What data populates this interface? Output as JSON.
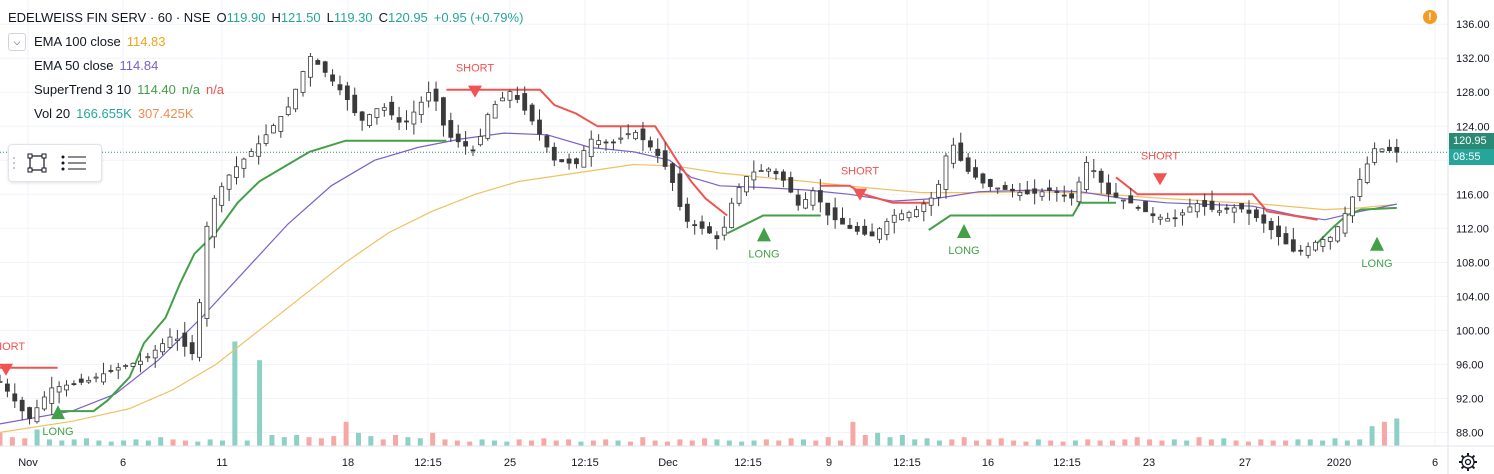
{
  "header": {
    "symbol": "EDELWEISS FIN SERV · 60 · NSE",
    "open_label": "O",
    "open": "119.90",
    "high_label": "H",
    "high": "121.50",
    "low_label": "L",
    "low": "119.30",
    "close_label": "C",
    "close": "120.95",
    "change": "+0.95 (+0.79%)"
  },
  "indicators": [
    {
      "name": "EMA 100 close",
      "values": [
        "114.83"
      ],
      "color": "#f0a519"
    },
    {
      "name": "EMA 50 close",
      "values": [
        "114.84"
      ],
      "color": "#7c5fc9"
    },
    {
      "name": "SuperTrend 3 10",
      "values": [
        "114.40",
        "n/a",
        "n/a"
      ],
      "color": "#e53935"
    },
    {
      "name": "Vol 20",
      "values": [
        "166.655K",
        "307.425K"
      ],
      "color": "#26a69a"
    }
  ],
  "warning_icon": "!",
  "current_price": "120.95",
  "countdown": "08:55",
  "colors": {
    "up": "#26a69a",
    "down": "#ef5350",
    "candle": "#3a3a3a",
    "supertrend_up": "#43a047",
    "supertrend_down": "#f05350",
    "ema100": "#f0c060",
    "ema50": "#7c5fc9",
    "price_tag": "#2b8a76",
    "countdown_tag": "#26a69a"
  },
  "chart_data": {
    "type": "candlestick",
    "y_axis_ticks": [
      136,
      132,
      128,
      124,
      120,
      116,
      112,
      108,
      104,
      100,
      96,
      92,
      88
    ],
    "ylim": [
      86.4,
      137.2
    ],
    "x_tick_labels": [
      "Nov",
      "6",
      "11",
      "18",
      "12:15",
      "25",
      "12:15",
      "Dec",
      "12:15",
      "9",
      "12:15",
      "16",
      "12:15",
      "23",
      "27",
      "2020",
      "6"
    ],
    "signals": [
      {
        "label": "SHORT",
        "at": "start",
        "price": 95.6
      },
      {
        "label": "LONG",
        "at": "Nov",
        "price": 90.5
      },
      {
        "label": "SHORT",
        "at": "12:15",
        "price": 128.3
      },
      {
        "label": "LONG",
        "at": "12:15",
        "price": 111.4
      },
      {
        "label": "SHORT",
        "at": "9",
        "price": 116.2
      },
      {
        "label": "LONG",
        "at": "16",
        "price": 111.8
      },
      {
        "label": "SHORT",
        "at": "23",
        "price": 118.0
      },
      {
        "label": "LONG",
        "at": "2020",
        "price": 110.3
      }
    ],
    "close_path": [
      [
        0,
        94.0
      ],
      [
        0.02,
        89.5
      ],
      [
        0.035,
        93.2
      ],
      [
        0.06,
        94.0
      ],
      [
        0.08,
        95.5
      ],
      [
        0.1,
        96.5
      ],
      [
        0.12,
        99.5
      ],
      [
        0.135,
        97.0
      ],
      [
        0.145,
        114.5
      ],
      [
        0.16,
        118.5
      ],
      [
        0.18,
        122.0
      ],
      [
        0.2,
        126.2
      ],
      [
        0.215,
        132.3
      ],
      [
        0.225,
        130.5
      ],
      [
        0.24,
        127.5
      ],
      [
        0.25,
        124.5
      ],
      [
        0.265,
        126.5
      ],
      [
        0.28,
        124.0
      ],
      [
        0.3,
        128.5
      ],
      [
        0.31,
        123.0
      ],
      [
        0.33,
        121.0
      ],
      [
        0.34,
        126.0
      ],
      [
        0.355,
        128.2
      ],
      [
        0.37,
        124.5
      ],
      [
        0.385,
        120.0
      ],
      [
        0.4,
        119.5
      ],
      [
        0.41,
        122.5
      ],
      [
        0.425,
        122.0
      ],
      [
        0.44,
        123.5
      ],
      [
        0.455,
        121.0
      ],
      [
        0.465,
        118.5
      ],
      [
        0.475,
        113.0
      ],
      [
        0.49,
        111.8
      ],
      [
        0.5,
        110.5
      ],
      [
        0.51,
        116.0
      ],
      [
        0.52,
        118.5
      ],
      [
        0.535,
        119.0
      ],
      [
        0.545,
        117.5
      ],
      [
        0.555,
        114.5
      ],
      [
        0.565,
        116.5
      ],
      [
        0.575,
        113.5
      ],
      [
        0.59,
        112.0
      ],
      [
        0.605,
        111.0
      ],
      [
        0.62,
        113.5
      ],
      [
        0.635,
        114.0
      ],
      [
        0.65,
        116.0
      ],
      [
        0.66,
        122.5
      ],
      [
        0.67,
        119.0
      ],
      [
        0.685,
        117.0
      ],
      [
        0.7,
        116.5
      ],
      [
        0.715,
        116.0
      ],
      [
        0.73,
        116.5
      ],
      [
        0.745,
        115.5
      ],
      [
        0.755,
        120.0
      ],
      [
        0.77,
        116.0
      ],
      [
        0.785,
        115.0
      ],
      [
        0.8,
        113.5
      ],
      [
        0.815,
        113.0
      ],
      [
        0.83,
        115.0
      ],
      [
        0.845,
        114.0
      ],
      [
        0.86,
        114.5
      ],
      [
        0.875,
        113.0
      ],
      [
        0.885,
        111.5
      ],
      [
        0.9,
        109.0
      ],
      [
        0.915,
        110.5
      ],
      [
        0.925,
        111.0
      ],
      [
        0.935,
        114.0
      ],
      [
        0.945,
        118.0
      ],
      [
        0.955,
        121.5
      ],
      [
        0.97,
        120.95
      ]
    ],
    "volume_level": [
      0.12,
      0.08,
      0.07,
      0.15,
      0.06,
      0.05,
      0.06,
      0.07,
      0.05,
      0.04,
      0.05,
      0.06,
      0.05,
      0.08,
      0.06,
      0.05,
      0.04,
      0.06,
      0.05,
      0.95,
      0.05,
      0.78,
      0.1,
      0.08,
      0.1,
      0.08,
      0.07,
      0.09,
      0.22,
      0.12,
      0.09,
      0.06,
      0.1,
      0.08,
      0.07,
      0.12,
      0.06,
      0.05,
      0.04,
      0.06,
      0.05,
      0.04,
      0.06,
      0.05,
      0.07,
      0.05,
      0.06,
      0.04,
      0.05,
      0.06,
      0.05,
      0.04,
      0.08,
      0.05,
      0.04,
      0.06,
      0.05,
      0.07,
      0.06,
      0.05,
      0.04,
      0.05,
      0.06,
      0.05,
      0.07,
      0.06,
      0.05,
      0.08,
      0.05,
      0.22,
      0.1,
      0.12,
      0.08,
      0.1,
      0.06,
      0.07,
      0.05,
      0.06,
      0.08,
      0.05,
      0.06,
      0.07,
      0.05,
      0.04,
      0.06,
      0.05,
      0.04,
      0.05,
      0.06,
      0.05,
      0.05,
      0.06,
      0.08,
      0.06,
      0.05,
      0.06,
      0.05,
      0.08,
      0.06,
      0.07,
      0.05,
      0.04,
      0.06,
      0.05,
      0.05,
      0.06,
      0.06,
      0.05,
      0.07,
      0.05,
      0.06,
      0.18,
      0.22,
      0.25
    ],
    "supertrend": [
      {
        "trend": "down",
        "points": [
          [
            0,
            95.6
          ],
          [
            0.04,
            95.6
          ]
        ]
      },
      {
        "trend": "up",
        "points": [
          [
            0.04,
            90.5
          ],
          [
            0.065,
            90.5
          ],
          [
            0.075,
            91.8
          ],
          [
            0.09,
            94.5
          ],
          [
            0.1,
            98.5
          ],
          [
            0.115,
            101.5
          ],
          [
            0.125,
            105.5
          ],
          [
            0.135,
            109.0
          ],
          [
            0.15,
            111.5
          ],
          [
            0.165,
            115.0
          ],
          [
            0.18,
            117.5
          ],
          [
            0.2,
            119.5
          ],
          [
            0.215,
            121.0
          ],
          [
            0.24,
            122.3
          ],
          [
            0.31,
            122.3
          ]
        ]
      },
      {
        "trend": "down",
        "points": [
          [
            0.31,
            128.3
          ],
          [
            0.375,
            128.3
          ],
          [
            0.385,
            126.5
          ],
          [
            0.4,
            125.5
          ],
          [
            0.415,
            124.0
          ],
          [
            0.455,
            124.0
          ],
          [
            0.47,
            120.0
          ],
          [
            0.48,
            117.5
          ],
          [
            0.49,
            115.5
          ],
          [
            0.505,
            113.5
          ]
        ]
      },
      {
        "trend": "up",
        "points": [
          [
            0.505,
            111.4
          ],
          [
            0.53,
            113.5
          ],
          [
            0.57,
            113.5
          ]
        ]
      },
      {
        "trend": "down",
        "points": [
          [
            0.57,
            117.0
          ],
          [
            0.59,
            117.0
          ],
          [
            0.6,
            116.0
          ],
          [
            0.62,
            115.0
          ],
          [
            0.645,
            115.0
          ]
        ]
      },
      {
        "trend": "up",
        "points": [
          [
            0.645,
            111.8
          ],
          [
            0.66,
            113.5
          ],
          [
            0.745,
            113.5
          ],
          [
            0.75,
            115.0
          ],
          [
            0.775,
            115.0
          ]
        ]
      },
      {
        "trend": "down",
        "points": [
          [
            0.775,
            118.0
          ],
          [
            0.79,
            116.0
          ],
          [
            0.87,
            116.0
          ],
          [
            0.88,
            114.0
          ],
          [
            0.915,
            113.0
          ]
        ]
      },
      {
        "trend": "up",
        "points": [
          [
            0.915,
            110.3
          ],
          [
            0.925,
            112.0
          ],
          [
            0.935,
            113.5
          ],
          [
            0.945,
            114.2
          ],
          [
            0.97,
            114.4
          ]
        ]
      }
    ],
    "ema50": [
      [
        0,
        89.0
      ],
      [
        0.05,
        90.5
      ],
      [
        0.08,
        92.5
      ],
      [
        0.11,
        96.5
      ],
      [
        0.14,
        101.5
      ],
      [
        0.17,
        107.0
      ],
      [
        0.2,
        112.5
      ],
      [
        0.23,
        117.0
      ],
      [
        0.26,
        120.0
      ],
      [
        0.29,
        121.5
      ],
      [
        0.32,
        122.5
      ],
      [
        0.35,
        123.2
      ],
      [
        0.38,
        123.0
      ],
      [
        0.41,
        121.5
      ],
      [
        0.44,
        121.0
      ],
      [
        0.465,
        120.0
      ],
      [
        0.48,
        118.0
      ],
      [
        0.5,
        117.0
      ],
      [
        0.53,
        116.8
      ],
      [
        0.56,
        116.5
      ],
      [
        0.59,
        116.0
      ],
      [
        0.62,
        115.2
      ],
      [
        0.65,
        115.5
      ],
      [
        0.68,
        116.3
      ],
      [
        0.72,
        116.5
      ],
      [
        0.75,
        116.3
      ],
      [
        0.78,
        115.5
      ],
      [
        0.81,
        115.0
      ],
      [
        0.84,
        114.8
      ],
      [
        0.87,
        114.6
      ],
      [
        0.9,
        113.5
      ],
      [
        0.92,
        113.0
      ],
      [
        0.945,
        114.0
      ],
      [
        0.97,
        114.84
      ]
    ],
    "ema100": [
      [
        0,
        88.0
      ],
      [
        0.05,
        89.3
      ],
      [
        0.09,
        90.8
      ],
      [
        0.12,
        93.0
      ],
      [
        0.15,
        96.0
      ],
      [
        0.18,
        100.0
      ],
      [
        0.21,
        104.0
      ],
      [
        0.24,
        108.0
      ],
      [
        0.27,
        111.5
      ],
      [
        0.3,
        114.0
      ],
      [
        0.33,
        116.0
      ],
      [
        0.36,
        117.5
      ],
      [
        0.4,
        118.5
      ],
      [
        0.44,
        119.5
      ],
      [
        0.47,
        119.3
      ],
      [
        0.5,
        118.5
      ],
      [
        0.53,
        118.0
      ],
      [
        0.56,
        117.5
      ],
      [
        0.6,
        116.8
      ],
      [
        0.64,
        116.2
      ],
      [
        0.68,
        116.2
      ],
      [
        0.72,
        116.3
      ],
      [
        0.76,
        116.1
      ],
      [
        0.8,
        115.6
      ],
      [
        0.84,
        115.2
      ],
      [
        0.88,
        114.8
      ],
      [
        0.92,
        114.2
      ],
      [
        0.945,
        114.4
      ],
      [
        0.97,
        114.83
      ]
    ]
  }
}
